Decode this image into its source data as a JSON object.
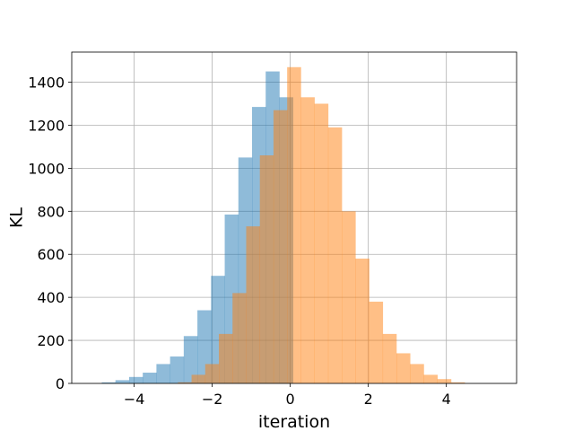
{
  "chart_data": {
    "type": "bar",
    "title": "",
    "xlabel": "iteration",
    "ylabel": "KL",
    "xlim": [
      -5.6,
      5.8
    ],
    "ylim": [
      0,
      1540
    ],
    "xticks": [
      -4,
      -2,
      0,
      2,
      4
    ],
    "xtick_labels": [
      "−4",
      "−2",
      "0",
      "2",
      "4"
    ],
    "yticks": [
      0,
      200,
      400,
      600,
      800,
      1000,
      1200,
      1400
    ],
    "ytick_labels": [
      "0",
      "200",
      "400",
      "600",
      "800",
      "1000",
      "1200",
      "1400"
    ],
    "grid": true,
    "series": [
      {
        "color": "#1f77b4",
        "opacity": 0.5,
        "bin_edges": [
          -4.83,
          -4.48,
          -4.13,
          -3.78,
          -3.43,
          -3.08,
          -2.73,
          -2.38,
          -2.03,
          -1.68,
          -1.33,
          -0.98,
          -0.63,
          -0.28,
          0.07
        ],
        "counts": [
          5,
          15,
          30,
          50,
          90,
          125,
          220,
          340,
          500,
          785,
          1050,
          1285,
          1450,
          1330
        ]
      },
      {
        "color": "#ff7f0e",
        "opacity": 0.5,
        "bin_edges": [
          -2.88,
          -2.53,
          -2.18,
          -1.83,
          -1.48,
          -1.13,
          -0.78,
          -0.43,
          -0.08,
          0.27,
          0.62,
          0.97,
          1.32,
          1.67,
          2.02,
          2.37,
          2.72,
          3.07,
          3.42,
          3.77,
          4.12,
          4.47
        ],
        "counts": [
          5,
          40,
          90,
          230,
          420,
          730,
          1060,
          1270,
          1470,
          1330,
          1300,
          1190,
          800,
          580,
          380,
          230,
          140,
          90,
          40,
          20,
          5
        ]
      }
    ]
  }
}
